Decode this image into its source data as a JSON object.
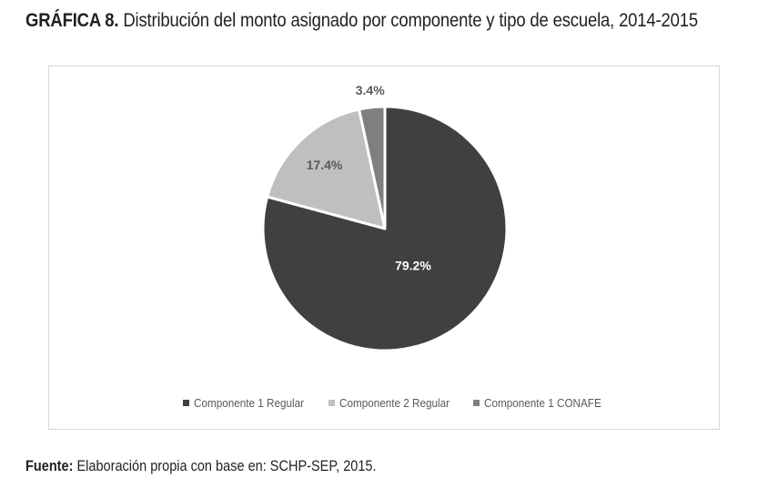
{
  "figure": {
    "title_prefix": "GRÁFICA 8.",
    "title": "Distribución del monto asignado por componente y tipo de escuela, 2014-2015",
    "source_label": "Fuente:",
    "source_text": "Elaboración propia con base en: SCHP-SEP, 2015."
  },
  "chart_data": {
    "type": "pie",
    "categories": [
      "Componente 1 Regular",
      "Componente 2 Regular",
      "Componente 1 CONAFE"
    ],
    "values": [
      79.2,
      17.4,
      3.4
    ],
    "data_labels": [
      "79.2%",
      "17.4%",
      "3.4%"
    ],
    "colors": [
      "#404040",
      "#bfbfbf",
      "#7f7f7f"
    ],
    "label_colors": [
      "#ffffff",
      "#595959",
      "#595959"
    ],
    "legend_position": "bottom"
  }
}
